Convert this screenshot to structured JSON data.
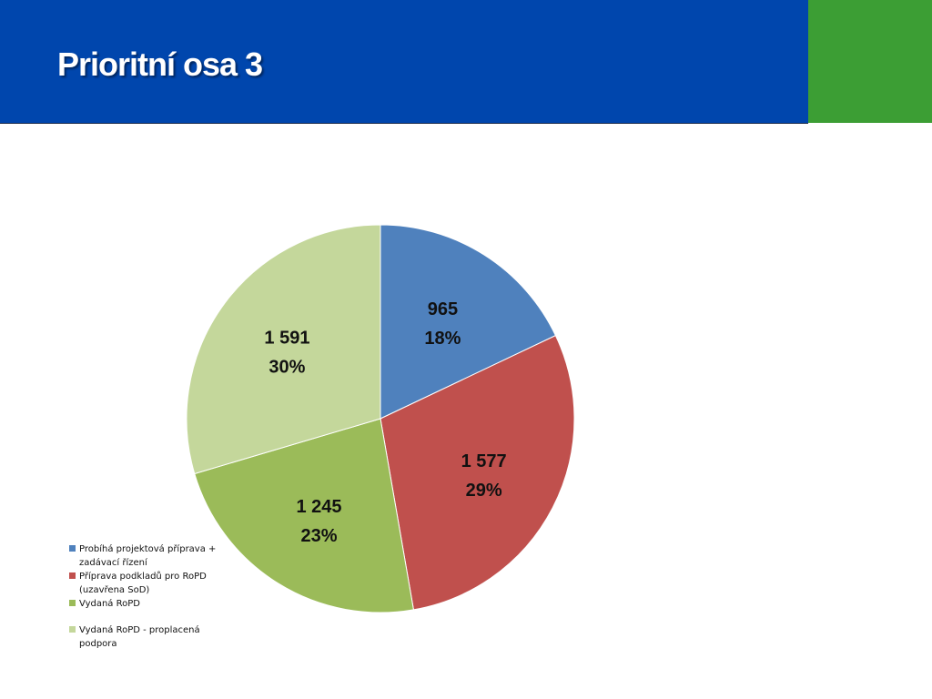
{
  "slide": {
    "title": "Prioritní osa 3",
    "colors": {
      "header": "#0046ad",
      "accent": "#3c9e34"
    }
  },
  "chart_data": {
    "type": "pie",
    "title": "",
    "categories": [
      "Probíhá projektová příprava + zadávací řízení",
      "Příprava podkladů pro RoPD (uzavřena SoD)",
      "Vydaná RoPD",
      "Vydaná RoPD - proplacená podpora"
    ],
    "values": [
      965,
      1577,
      1245,
      1591
    ],
    "value_labels": [
      "965",
      "1 577",
      "1 245",
      "1 591"
    ],
    "percent_labels": [
      "18%",
      "29%",
      "23%",
      "30%"
    ],
    "colors": [
      "#4f81bd",
      "#c0504d",
      "#9bbb59",
      "#c4d79b"
    ],
    "legend_position": "bottom-left",
    "start_angle": "12 o'clock, clockwise"
  }
}
